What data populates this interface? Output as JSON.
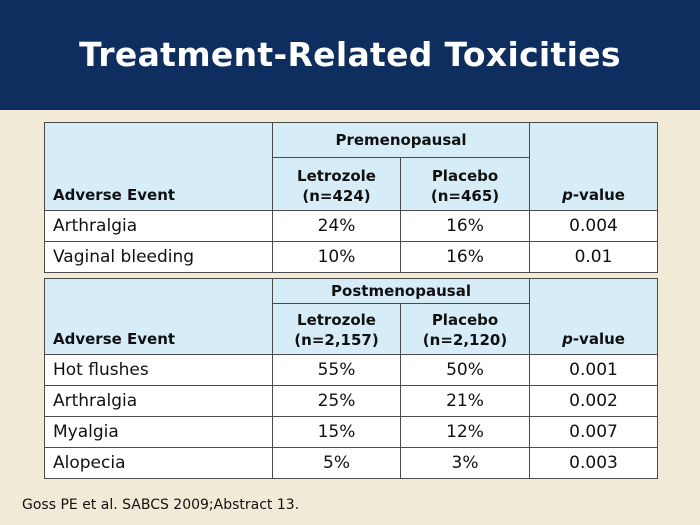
{
  "slide": {
    "title": "Treatment-Related Toxicities",
    "footnote": "Goss PE et al. SABCS 2009;Abstract 13."
  },
  "tables": [
    {
      "group": "Premenopausal",
      "col_event": "Adverse Event",
      "col_a": {
        "name": "Letrozole",
        "n": "(n=424)"
      },
      "col_b": {
        "name": "Placebo",
        "n": "(n=465)"
      },
      "col_p_prefix": "p",
      "col_p_suffix": "-value",
      "rows": [
        {
          "event": "Arthralgia",
          "a": "24%",
          "b": "16%",
          "p": "0.004"
        },
        {
          "event": "Vaginal bleeding",
          "a": "10%",
          "b": "16%",
          "p": "0.01"
        }
      ]
    },
    {
      "group": "Postmenopausal",
      "col_event": "Adverse Event",
      "col_a": {
        "name": "Letrozole",
        "n": "(n=2,157)"
      },
      "col_b": {
        "name": "Placebo",
        "n": "(n=2,120)"
      },
      "col_p_prefix": "p",
      "col_p_suffix": "-value",
      "rows": [
        {
          "event": "Hot flushes",
          "a": "55%",
          "b": "50%",
          "p": "0.001"
        },
        {
          "event": "Arthralgia",
          "a": "25%",
          "b": "21%",
          "p": "0.002"
        },
        {
          "event": "Myalgia",
          "a": "15%",
          "b": "12%",
          "p": "0.007"
        },
        {
          "event": "Alopecia",
          "a": "5%",
          "b": "3%",
          "p": "0.003"
        }
      ]
    }
  ],
  "colors": {
    "header_bg": "#0d2e5e",
    "table_header_bg": "#d6ecf7",
    "page_bg": "#f1ead6"
  }
}
